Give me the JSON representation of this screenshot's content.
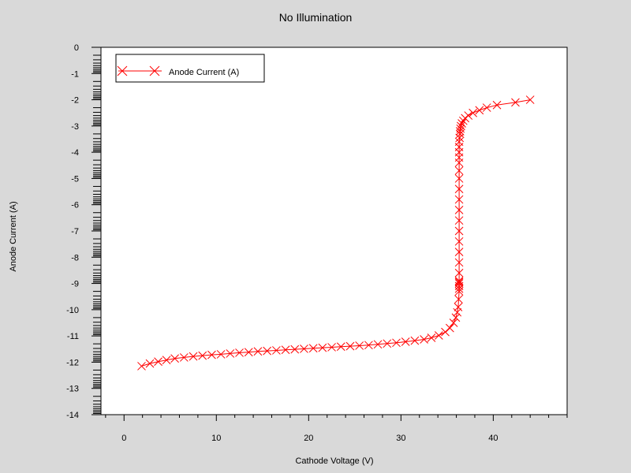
{
  "chart_data": {
    "type": "line",
    "title": "No Illumination",
    "xlabel": "Cathode Voltage (V)",
    "ylabel": "Anode Current (A)",
    "xlim": [
      -2.5,
      48
    ],
    "ylim": [
      -14,
      0
    ],
    "xticks": [
      0,
      10,
      20,
      30,
      40
    ],
    "yticks": [
      0,
      -1,
      -2,
      -3,
      -4,
      -5,
      -6,
      -7,
      -8,
      -9,
      -10,
      -11,
      -12,
      -13,
      -14
    ],
    "grid": false,
    "legend": "top-left",
    "series": [
      {
        "name": "Anode Current (A)",
        "color": "#ff0000",
        "marker": "x",
        "x": [
          1.9,
          2.8,
          3.7,
          4.6,
          5.5,
          6.5,
          7.5,
          8.5,
          9.5,
          10.5,
          11.5,
          12.5,
          13.5,
          14.5,
          15.5,
          16.5,
          17.5,
          18.5,
          19.5,
          20.5,
          21.5,
          22.5,
          23.5,
          24.5,
          25.5,
          26.5,
          27.5,
          28.5,
          29.5,
          30.5,
          31.5,
          32.5,
          33.3,
          34.1,
          34.8,
          35.3,
          35.7,
          35.95,
          36.1,
          36.2,
          36.25,
          36.3,
          36.3,
          36.3,
          36.3,
          36.3,
          36.3,
          36.3,
          36.3,
          36.3,
          36.3,
          36.3,
          36.3,
          36.3,
          36.3,
          36.3,
          36.3,
          36.3,
          36.3,
          36.3,
          36.3,
          36.3,
          36.3,
          36.35,
          36.4,
          36.4,
          36.45,
          36.5,
          36.6,
          36.75,
          36.95,
          37.3,
          37.8,
          38.5,
          39.3,
          40.4,
          42.4,
          44.0
        ],
        "y": [
          -12.15,
          -12.05,
          -11.98,
          -11.92,
          -11.86,
          -11.82,
          -11.78,
          -11.75,
          -11.72,
          -11.7,
          -11.67,
          -11.64,
          -11.62,
          -11.59,
          -11.57,
          -11.55,
          -11.53,
          -11.51,
          -11.49,
          -11.47,
          -11.45,
          -11.43,
          -11.41,
          -11.39,
          -11.37,
          -11.35,
          -11.32,
          -11.29,
          -11.26,
          -11.22,
          -11.18,
          -11.13,
          -11.07,
          -10.98,
          -10.85,
          -10.7,
          -10.5,
          -10.3,
          -10.1,
          -9.9,
          -9.6,
          -9.3,
          -9.2,
          -9.1,
          -9.0,
          -8.95,
          -8.9,
          -8.6,
          -8.2,
          -7.8,
          -7.4,
          -7.0,
          -6.6,
          -6.2,
          -5.8,
          -5.4,
          -5.0,
          -4.7,
          -4.4,
          -4.2,
          -4.0,
          -3.8,
          -3.6,
          -3.45,
          -3.3,
          -3.2,
          -3.1,
          -3.0,
          -2.9,
          -2.8,
          -2.7,
          -2.6,
          -2.5,
          -2.4,
          -2.3,
          -2.2,
          -2.1,
          -2.0
        ]
      }
    ]
  }
}
